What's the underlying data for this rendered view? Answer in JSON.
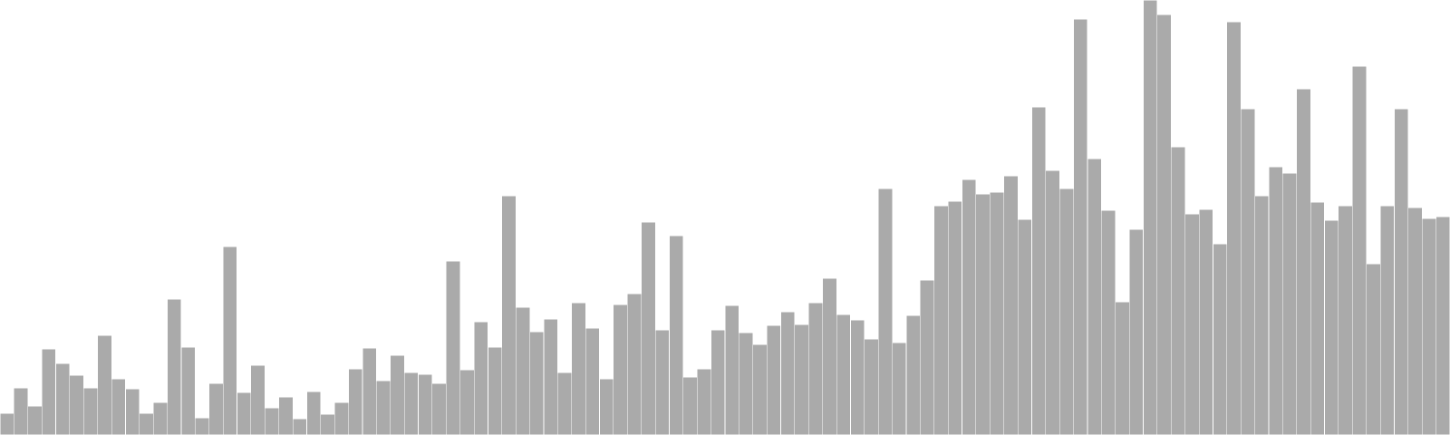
{
  "chart_data": {
    "type": "bar",
    "title": "",
    "xlabel": "",
    "ylabel": "",
    "ylim": [
      0,
      480
    ],
    "grid": false,
    "legend": "none",
    "colors": {
      "bar": "#aaaaaa",
      "bar_edge": "#ffffff",
      "background": "#ffffff"
    },
    "values": [
      24,
      52,
      32,
      95,
      79,
      66,
      52,
      110,
      62,
      51,
      24,
      36,
      150,
      97,
      19,
      57,
      208,
      47,
      77,
      30,
      42,
      18,
      48,
      23,
      36,
      73,
      96,
      60,
      88,
      69,
      67,
      57,
      192,
      72,
      125,
      97,
      264,
      141,
      114,
      128,
      69,
      146,
      118,
      62,
      144,
      156,
      235,
      116,
      220,
      64,
      73,
      116,
      143,
      113,
      100,
      121,
      136,
      122,
      146,
      173,
      133,
      127,
      106,
      272,
      102,
      132,
      171,
      253,
      258,
      282,
      266,
      268,
      286,
      238,
      362,
      292,
      272,
      459,
      305,
      248,
      147,
      227,
      480,
      464,
      318,
      244,
      249,
      211,
      456,
      360,
      264,
      296,
      289,
      382,
      257,
      237,
      253,
      407,
      189,
      253,
      360,
      251,
      239,
      241
    ]
  }
}
